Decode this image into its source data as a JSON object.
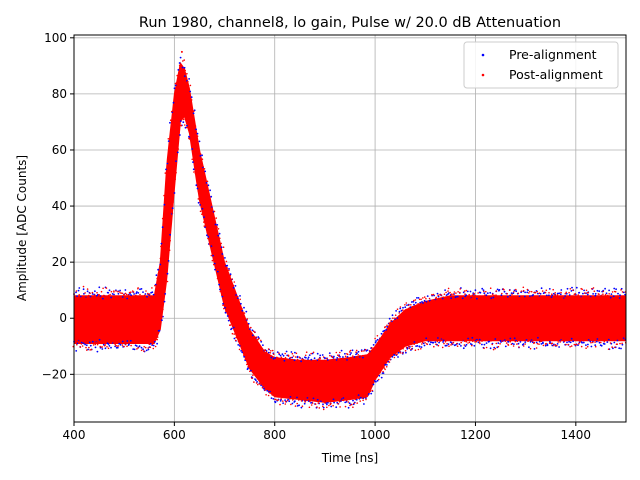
{
  "chart_data": {
    "type": "scatter",
    "title": "Run 1980, channel8, lo gain, Pulse w/ 20.0 dB Attenuation",
    "xlabel": "Time [ns]",
    "ylabel": "Amplitude [ADC Counts]",
    "xlim": [
      400,
      1500
    ],
    "ylim": [
      -37,
      101
    ],
    "xticks": [
      400,
      600,
      800,
      1000,
      1200,
      1400
    ],
    "yticks": [
      -20,
      0,
      20,
      40,
      60,
      80,
      100
    ],
    "grid": true,
    "legend_position": "top-right",
    "series": [
      {
        "name": "Pre-alignment",
        "color": "#0000ff",
        "marker": "point",
        "envelope": {
          "x": [
            400,
            560,
            572,
            585,
            600,
            612,
            620,
            630,
            650,
            700,
            750,
            780,
            800,
            850,
            900,
            950,
            985,
            1000,
            1030,
            1060,
            1100,
            1150,
            1200,
            1300,
            1400,
            1500
          ],
          "upper": [
            8,
            8,
            20,
            55,
            80,
            91,
            89,
            82,
            60,
            20,
            -4,
            -12,
            -14,
            -15,
            -15,
            -14,
            -13,
            -10,
            -2,
            3,
            6,
            8,
            8,
            8,
            8,
            8
          ],
          "lower": [
            -9,
            -9,
            -4,
            14,
            46,
            70,
            72,
            66,
            42,
            4,
            -18,
            -25,
            -28,
            -29,
            -30,
            -29,
            -28,
            -22,
            -14,
            -10,
            -8,
            -8,
            -8,
            -8,
            -8,
            -8
          ]
        }
      },
      {
        "name": "Post-alignment",
        "color": "#ff0000",
        "marker": "point",
        "envelope": {
          "x": [
            400,
            560,
            572,
            585,
            600,
            612,
            620,
            630,
            650,
            700,
            750,
            780,
            800,
            850,
            900,
            950,
            985,
            1000,
            1030,
            1060,
            1100,
            1150,
            1200,
            1300,
            1400,
            1500
          ],
          "upper": [
            8,
            8,
            20,
            55,
            80,
            91,
            89,
            82,
            60,
            20,
            -4,
            -12,
            -14,
            -15,
            -15,
            -14,
            -13,
            -10,
            -2,
            3,
            6,
            8,
            8,
            8,
            8,
            8
          ],
          "lower": [
            -9,
            -9,
            -4,
            14,
            46,
            70,
            72,
            66,
            42,
            4,
            -18,
            -25,
            -28,
            -29,
            -30,
            -29,
            -28,
            -22,
            -14,
            -10,
            -8,
            -8,
            -8,
            -8,
            -8,
            -8
          ]
        }
      }
    ],
    "peak": {
      "x": 615,
      "y": 95
    }
  }
}
